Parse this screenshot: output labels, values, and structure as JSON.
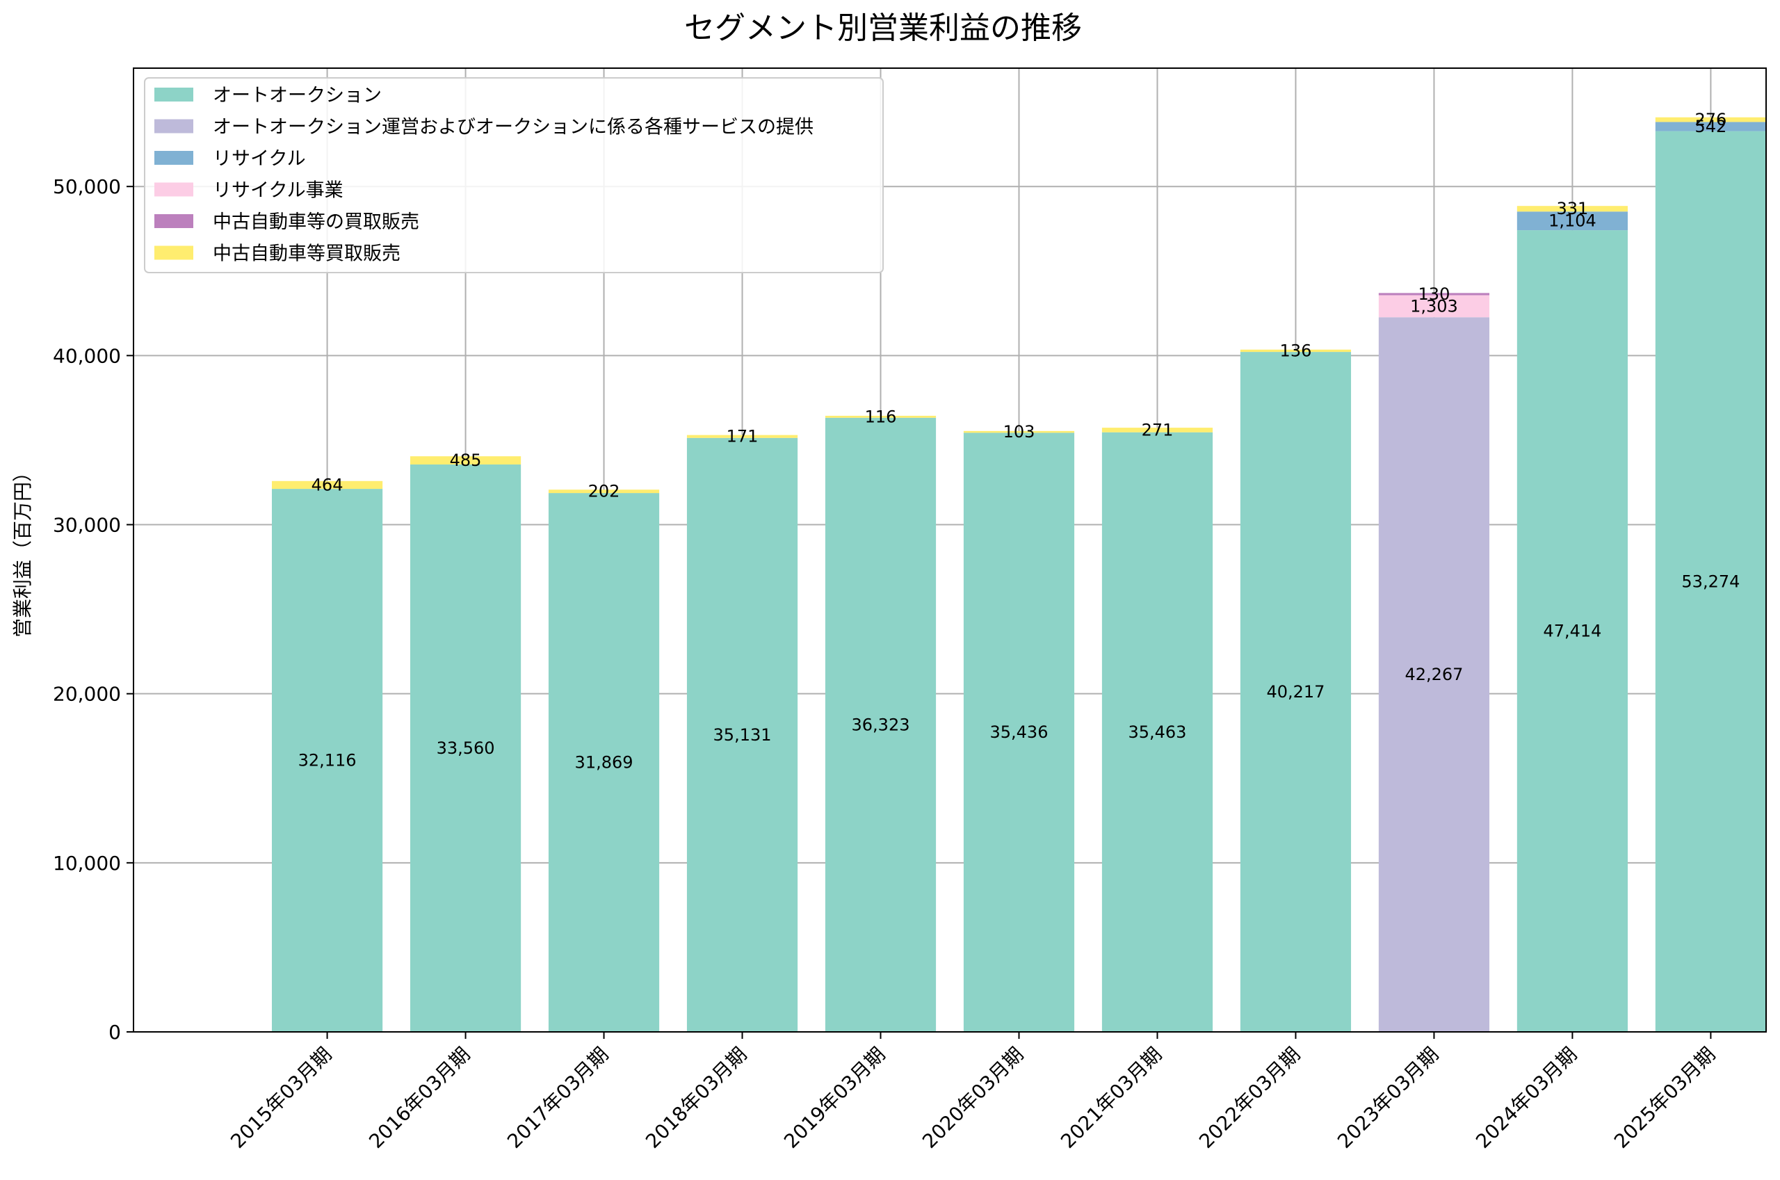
{
  "chart_data": {
    "type": "bar",
    "stacked": true,
    "title": "セグメント別営業利益の推移",
    "xlabel": "",
    "ylabel": "営業利益（百万円）",
    "ylim": [
      0,
      57000
    ],
    "yticks": [
      0,
      10000,
      20000,
      30000,
      40000,
      50000
    ],
    "ytick_labels": [
      "0",
      "10,000",
      "20,000",
      "30,000",
      "40,000",
      "50,000"
    ],
    "grid": true,
    "legend_position": "top-left",
    "categories": [
      "2015年03月期",
      "2016年03月期",
      "2017年03月期",
      "2018年03月期",
      "2019年03月期",
      "2020年03月期",
      "2021年03月期",
      "2022年03月期",
      "2023年03月期",
      "2024年03月期",
      "2025年03月期"
    ],
    "series": [
      {
        "name": "オートオークション",
        "color": "#8dd3c7",
        "values": [
          32116,
          33560,
          31869,
          35131,
          36323,
          35436,
          35463,
          40217,
          null,
          47414,
          53274
        ],
        "labels": [
          "32,116",
          "33,560",
          "31,869",
          "35,131",
          "36,323",
          "35,436",
          "35,463",
          "40,217",
          null,
          "47,414",
          "53,274"
        ]
      },
      {
        "name": "オートオークション運営およびオークションに係る各種サービスの提供",
        "color": "#bebada",
        "values": [
          null,
          null,
          null,
          null,
          null,
          null,
          null,
          null,
          42267,
          null,
          null
        ],
        "labels": [
          null,
          null,
          null,
          null,
          null,
          null,
          null,
          null,
          "42,267",
          null,
          null
        ]
      },
      {
        "name": "リサイクル",
        "color": "#80b1d3",
        "values": [
          null,
          null,
          null,
          null,
          null,
          null,
          null,
          null,
          null,
          1104,
          542
        ],
        "labels": [
          null,
          null,
          null,
          null,
          null,
          null,
          null,
          null,
          null,
          "1,104",
          "542"
        ]
      },
      {
        "name": "リサイクル事業",
        "color": "#fccde5",
        "values": [
          null,
          null,
          null,
          null,
          null,
          null,
          null,
          null,
          1303,
          null,
          null
        ],
        "labels": [
          null,
          null,
          null,
          null,
          null,
          null,
          null,
          null,
          "1,303",
          null,
          null
        ]
      },
      {
        "name": "中古自動車等の買取販売",
        "color": "#bc80bd",
        "values": [
          null,
          null,
          null,
          null,
          null,
          null,
          null,
          null,
          130,
          null,
          null
        ],
        "labels": [
          null,
          null,
          null,
          null,
          null,
          null,
          null,
          null,
          "130",
          null,
          null
        ]
      },
      {
        "name": "中古自動車等買取販売",
        "color": "#ffed6f",
        "values": [
          464,
          485,
          202,
          171,
          116,
          103,
          271,
          136,
          null,
          331,
          276
        ],
        "labels": [
          "464",
          "485",
          "202",
          "171",
          "116",
          "103",
          "271",
          "136",
          null,
          "331",
          "276"
        ]
      }
    ]
  }
}
